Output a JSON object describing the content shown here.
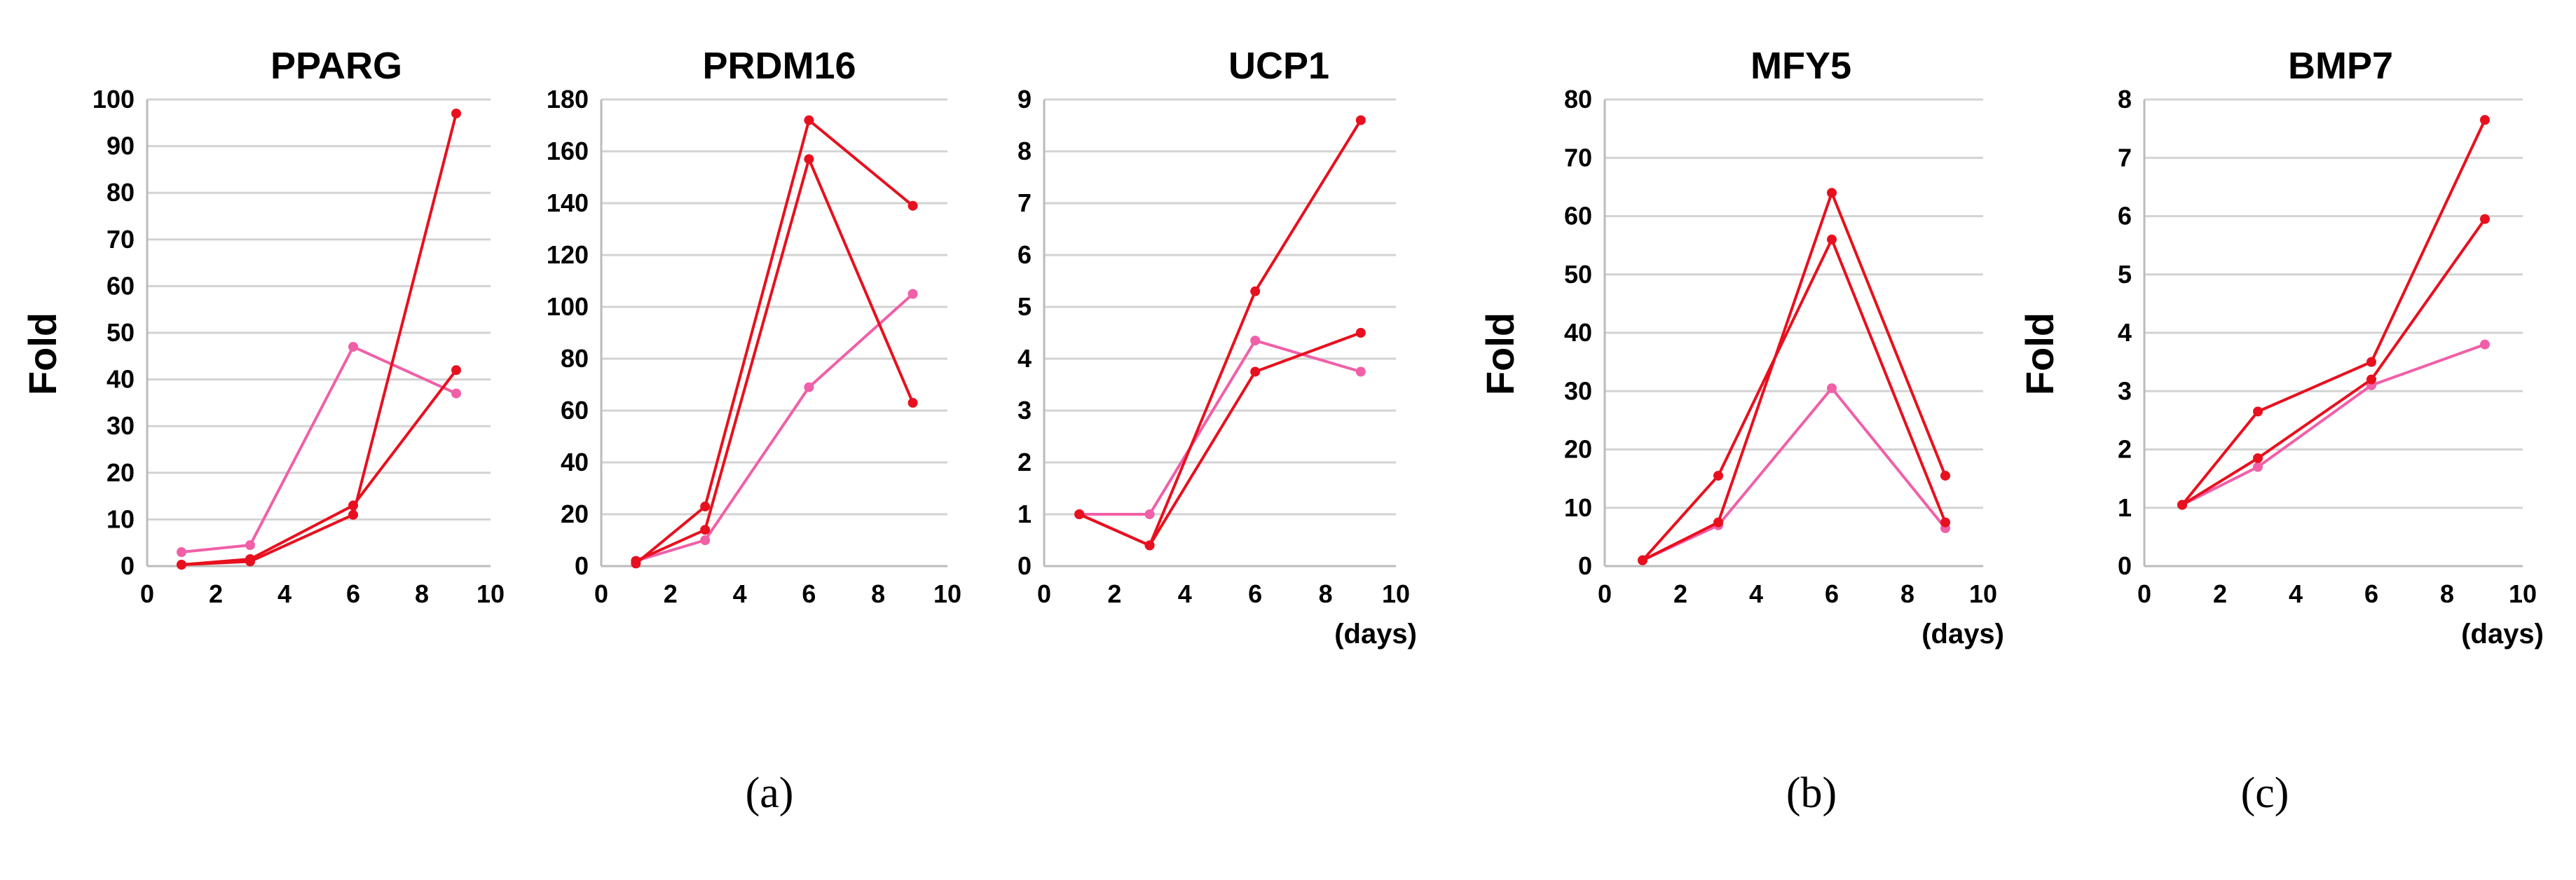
{
  "colors": {
    "red": "#e8101e",
    "pink": "#f15fa8"
  },
  "panel_labels": [
    "(a)",
    "(b)",
    "(c)"
  ],
  "chart_data": [
    {
      "type": "line",
      "title": "PPARG",
      "ylabel": "Fold",
      "xlabel": "",
      "xlim": [
        0,
        10
      ],
      "xticks": [
        0,
        2,
        4,
        6,
        8,
        10
      ],
      "ylim": [
        0,
        100
      ],
      "yticks": [
        0,
        10,
        20,
        30,
        40,
        50,
        60,
        70,
        80,
        90,
        100
      ],
      "series": [
        {
          "name": "red-1",
          "color": "red",
          "x": [
            1,
            3,
            6,
            9
          ],
          "values": [
            0.3,
            1,
            11,
            97
          ]
        },
        {
          "name": "red-2",
          "color": "red",
          "x": [
            1,
            3,
            6,
            9
          ],
          "values": [
            0.3,
            1.5,
            13,
            42
          ]
        },
        {
          "name": "pink",
          "color": "pink",
          "x": [
            1,
            3,
            6,
            9
          ],
          "values": [
            3,
            4.5,
            47,
            37
          ]
        }
      ]
    },
    {
      "type": "line",
      "title": "PRDM16",
      "ylabel": "",
      "xlabel": "",
      "xlim": [
        0,
        10
      ],
      "xticks": [
        0,
        2,
        4,
        6,
        8,
        10
      ],
      "ylim": [
        0,
        180
      ],
      "yticks": [
        0,
        20,
        40,
        60,
        80,
        100,
        120,
        140,
        160,
        180
      ],
      "series": [
        {
          "name": "red-1",
          "color": "red",
          "x": [
            1,
            3,
            6,
            9
          ],
          "values": [
            1,
            23,
            172,
            139
          ]
        },
        {
          "name": "red-2",
          "color": "red",
          "x": [
            1,
            3,
            6,
            9
          ],
          "values": [
            2,
            14,
            157,
            63
          ]
        },
        {
          "name": "pink",
          "color": "pink",
          "x": [
            1,
            3,
            6,
            9
          ],
          "values": [
            2,
            10,
            69,
            105
          ]
        }
      ]
    },
    {
      "type": "line",
      "title": "UCP1",
      "ylabel": "",
      "xlabel": "(days)",
      "xlim": [
        0,
        10
      ],
      "xticks": [
        0,
        2,
        4,
        6,
        8,
        10
      ],
      "ylim": [
        0,
        9
      ],
      "yticks": [
        0,
        1,
        2,
        3,
        4,
        5,
        6,
        7,
        8,
        9
      ],
      "series": [
        {
          "name": "red-1",
          "color": "red",
          "x": [
            1,
            3,
            6,
            9
          ],
          "values": [
            1,
            0.4,
            5.3,
            8.6
          ]
        },
        {
          "name": "red-2",
          "color": "red",
          "x": [
            1,
            3,
            6,
            9
          ],
          "values": [
            1,
            0.4,
            3.75,
            4.5
          ]
        },
        {
          "name": "pink",
          "color": "pink",
          "x": [
            1,
            3,
            6,
            9
          ],
          "values": [
            1,
            1,
            4.35,
            3.75
          ]
        }
      ]
    },
    {
      "type": "line",
      "title": "MFY5",
      "ylabel": "Fold",
      "xlabel": "(days)",
      "xlim": [
        0,
        10
      ],
      "xticks": [
        0,
        2,
        4,
        6,
        8,
        10
      ],
      "ylim": [
        0,
        80
      ],
      "yticks": [
        0,
        10,
        20,
        30,
        40,
        50,
        60,
        70,
        80
      ],
      "series": [
        {
          "name": "red-1",
          "color": "red",
          "x": [
            1,
            3,
            6,
            9
          ],
          "values": [
            1,
            15.5,
            56,
            7.5
          ]
        },
        {
          "name": "red-2",
          "color": "red",
          "x": [
            1,
            3,
            6,
            9
          ],
          "values": [
            1,
            7.5,
            64,
            15.5
          ]
        },
        {
          "name": "pink",
          "color": "pink",
          "x": [
            1,
            3,
            6,
            9
          ],
          "values": [
            1,
            7,
            30.5,
            6.5
          ]
        }
      ]
    },
    {
      "type": "line",
      "title": "BMP7",
      "ylabel": "Fold",
      "xlabel": "(days)",
      "xlim": [
        0,
        10
      ],
      "xticks": [
        0,
        2,
        4,
        6,
        8,
        10
      ],
      "ylim": [
        0,
        8
      ],
      "yticks": [
        0,
        1,
        2,
        3,
        4,
        5,
        6,
        7,
        8
      ],
      "series": [
        {
          "name": "red-1",
          "color": "red",
          "x": [
            1,
            3,
            6,
            9
          ],
          "values": [
            1.05,
            2.65,
            3.5,
            7.65
          ]
        },
        {
          "name": "red-2",
          "color": "red",
          "x": [
            1,
            3,
            6,
            9
          ],
          "values": [
            1.05,
            1.85,
            3.2,
            5.95
          ]
        },
        {
          "name": "pink",
          "color": "pink",
          "x": [
            1,
            3,
            6,
            9
          ],
          "values": [
            1.05,
            1.7,
            3.1,
            3.8
          ]
        }
      ]
    }
  ]
}
